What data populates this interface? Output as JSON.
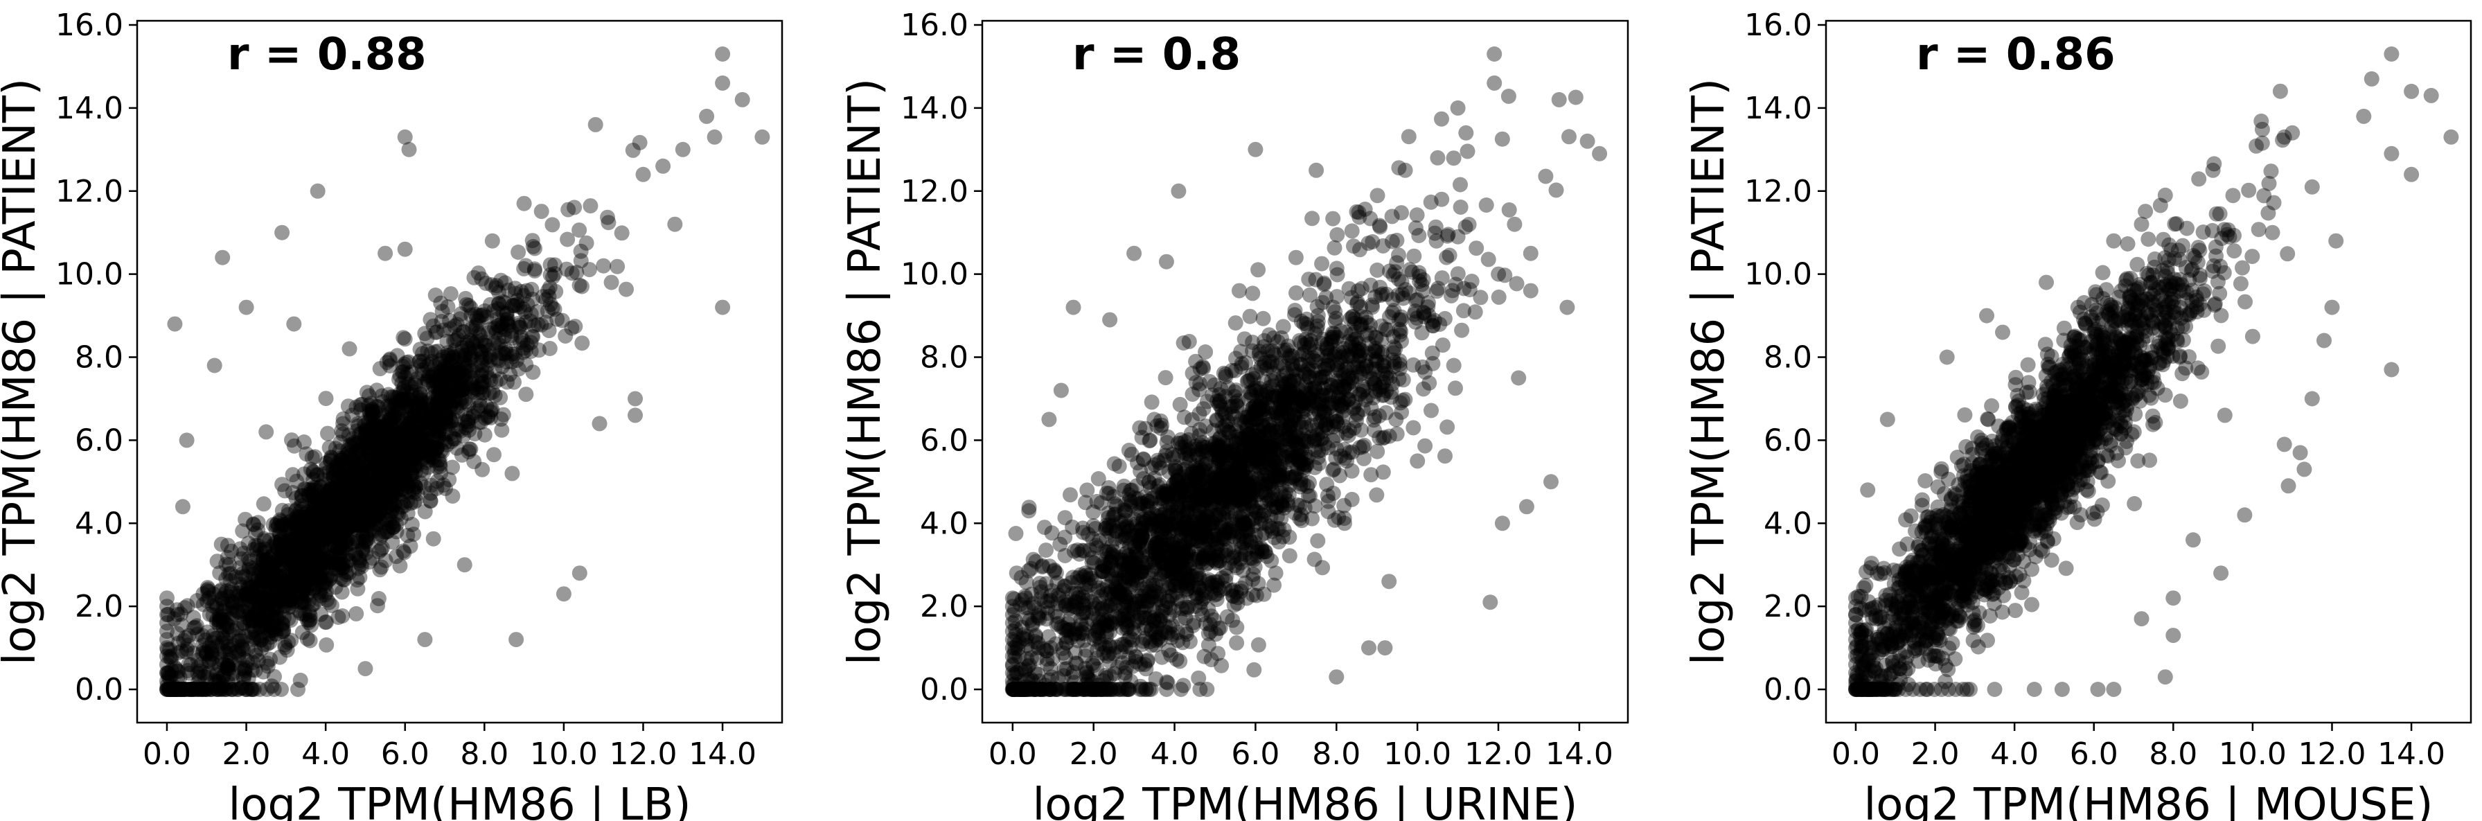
{
  "chart_data": [
    {
      "type": "scatter",
      "annotation": "r = 0.88",
      "r": 0.88,
      "xlabel": "log2 TPM(HM86 | LB)",
      "ylabel": "log2 TPM(HM86 | PATIENT)",
      "xlim": [
        -0.75,
        15.5
      ],
      "ylim": [
        -0.8,
        16.1
      ],
      "xticks": [
        0,
        2,
        4,
        6,
        8,
        10,
        12,
        14
      ],
      "xtick_labels": [
        "0.0",
        "2.0",
        "4.0",
        "6.0",
        "8.0",
        "10.0",
        "12.0",
        "14.0"
      ],
      "yticks": [
        0,
        2,
        4,
        6,
        8,
        10,
        12,
        14,
        16
      ],
      "ytick_labels": [
        "0.0",
        "2.0",
        "4.0",
        "6.0",
        "8.0",
        "10.0",
        "12.0",
        "14.0",
        "16.0"
      ],
      "marker_color": "#000000",
      "marker_alpha": 0.4,
      "grid": false,
      "points": [
        [
          14.0,
          15.3
        ],
        [
          14.0,
          14.6
        ],
        [
          14.5,
          14.2
        ],
        [
          15.0,
          13.3
        ],
        [
          13.6,
          13.8
        ],
        [
          13.8,
          13.3
        ],
        [
          13.0,
          13.0
        ],
        [
          12.5,
          12.6
        ],
        [
          12.0,
          12.4
        ],
        [
          14.0,
          9.2
        ],
        [
          6.0,
          13.3
        ],
        [
          6.1,
          13.0
        ],
        [
          3.8,
          12.0
        ],
        [
          2.9,
          11.0
        ],
        [
          1.4,
          10.4
        ],
        [
          5.5,
          10.5
        ],
        [
          6.0,
          10.6
        ],
        [
          10.8,
          13.6
        ],
        [
          9.0,
          11.7
        ],
        [
          11.8,
          7.0
        ],
        [
          11.8,
          6.6
        ],
        [
          10.9,
          6.4
        ],
        [
          11.2,
          9.8
        ],
        [
          10.4,
          2.8
        ],
        [
          10.0,
          2.3
        ],
        [
          8.8,
          1.2
        ],
        [
          6.5,
          1.2
        ],
        [
          5.0,
          0.5
        ],
        [
          0.2,
          8.8
        ],
        [
          0.5,
          6.0
        ],
        [
          1.2,
          7.8
        ],
        [
          0.4,
          4.4
        ],
        [
          2.0,
          9.2
        ],
        [
          3.2,
          8.8
        ],
        [
          9.6,
          9.6
        ],
        [
          9.2,
          8.5
        ],
        [
          8.7,
          5.2
        ],
        [
          7.5,
          3.0
        ],
        [
          3.3,
          0.0
        ],
        [
          1.5,
          0.0
        ],
        [
          2.0,
          0.0
        ],
        [
          10.2,
          8.7
        ],
        [
          11.0,
          10.2
        ],
        [
          12.8,
          11.2
        ],
        [
          8.2,
          10.8
        ],
        [
          6.9,
          9.3
        ],
        [
          4.6,
          8.2
        ],
        [
          2.5,
          6.2
        ],
        [
          1.9,
          1.0
        ],
        [
          3.6,
          3.0
        ]
      ],
      "cloud": {
        "intercept": -0.1,
        "slope": 1.0,
        "spread": 0.95,
        "x_mean": 4.7,
        "x_sd": 2.3,
        "count": 2600
      }
    },
    {
      "type": "scatter",
      "annotation": "r = 0.8",
      "r": 0.8,
      "xlabel": "log2 TPM(HM86 | URINE)",
      "ylabel": "log2 TPM(HM86 | PATIENT)",
      "xlim": [
        -0.75,
        15.2
      ],
      "ylim": [
        -0.8,
        16.1
      ],
      "xticks": [
        0,
        2,
        4,
        6,
        8,
        10,
        12,
        14
      ],
      "xtick_labels": [
        "0.0",
        "2.0",
        "4.0",
        "6.0",
        "8.0",
        "10.0",
        "12.0",
        "14.0"
      ],
      "yticks": [
        0,
        2,
        4,
        6,
        8,
        10,
        12,
        14,
        16
      ],
      "ytick_labels": [
        "0.0",
        "2.0",
        "4.0",
        "6.0",
        "8.0",
        "10.0",
        "12.0",
        "14.0",
        "16.0"
      ],
      "marker_color": "#000000",
      "marker_alpha": 0.4,
      "grid": false,
      "points": [
        [
          11.9,
          15.3
        ],
        [
          11.9,
          14.6
        ],
        [
          11.0,
          14.0
        ],
        [
          13.5,
          14.2
        ],
        [
          14.2,
          13.2
        ],
        [
          14.5,
          12.9
        ],
        [
          11.2,
          13.4
        ],
        [
          10.5,
          12.8
        ],
        [
          6.0,
          13.0
        ],
        [
          4.1,
          12.0
        ],
        [
          9.7,
          12.5
        ],
        [
          10.6,
          11.8
        ],
        [
          3.8,
          10.3
        ],
        [
          3.0,
          10.5
        ],
        [
          1.5,
          9.2
        ],
        [
          12.4,
          11.2
        ],
        [
          12.8,
          10.5
        ],
        [
          13.7,
          9.2
        ],
        [
          12.5,
          7.5
        ],
        [
          13.3,
          5.0
        ],
        [
          12.7,
          4.4
        ],
        [
          12.1,
          4.0
        ],
        [
          11.8,
          2.1
        ],
        [
          9.3,
          2.6
        ],
        [
          8.8,
          1.0
        ],
        [
          8.0,
          0.3
        ],
        [
          0.9,
          6.5
        ],
        [
          1.2,
          7.2
        ],
        [
          0.4,
          4.3
        ],
        [
          0.1,
          2.8
        ],
        [
          2.4,
          8.9
        ],
        [
          10.9,
          7.8
        ],
        [
          9.6,
          8.9
        ],
        [
          11.0,
          10.9
        ],
        [
          9.9,
          6.3
        ],
        [
          2.5,
          0.0
        ],
        [
          3.2,
          0.0
        ],
        [
          4.8,
          0.0
        ],
        [
          7.5,
          12.5
        ],
        [
          5.6,
          9.6
        ],
        [
          8.2,
          4.0
        ],
        [
          10.0,
          5.5
        ],
        [
          1.8,
          4.5
        ],
        [
          2.8,
          3.7
        ],
        [
          7.0,
          10.4
        ],
        [
          8.5,
          11.5
        ],
        [
          12.8,
          9.6
        ],
        [
          9.2,
          1.0
        ],
        [
          6.5,
          2.8
        ],
        [
          3.5,
          6.5
        ]
      ],
      "cloud": {
        "intercept": 0.1,
        "slope": 0.9,
        "spread": 1.45,
        "x_mean": 5.0,
        "x_sd": 2.6,
        "count": 2600
      }
    },
    {
      "type": "scatter",
      "annotation": "r = 0.86",
      "r": 0.86,
      "xlabel": "log2 TPM(HM86 | MOUSE)",
      "ylabel": "log2 TPM(HM86 | PATIENT)",
      "xlim": [
        -0.75,
        15.5
      ],
      "ylim": [
        -0.8,
        16.1
      ],
      "xticks": [
        0,
        2,
        4,
        6,
        8,
        10,
        12,
        14
      ],
      "xtick_labels": [
        "0.0",
        "2.0",
        "4.0",
        "6.0",
        "8.0",
        "10.0",
        "12.0",
        "14.0"
      ],
      "yticks": [
        0,
        2,
        4,
        6,
        8,
        10,
        12,
        14,
        16
      ],
      "ytick_labels": [
        "0.0",
        "2.0",
        "4.0",
        "6.0",
        "8.0",
        "10.0",
        "12.0",
        "14.0",
        "16.0"
      ],
      "marker_color": "#000000",
      "marker_alpha": 0.4,
      "grid": false,
      "points": [
        [
          13.5,
          15.3
        ],
        [
          14.0,
          14.4
        ],
        [
          14.5,
          14.3
        ],
        [
          15.0,
          13.3
        ],
        [
          13.0,
          14.7
        ],
        [
          12.8,
          13.8
        ],
        [
          11.0,
          13.4
        ],
        [
          10.8,
          13.3
        ],
        [
          9.0,
          12.5
        ],
        [
          7.8,
          11.9
        ],
        [
          7.2,
          11.2
        ],
        [
          6.5,
          10.8
        ],
        [
          14.0,
          12.4
        ],
        [
          13.5,
          12.9
        ],
        [
          11.5,
          12.1
        ],
        [
          12.0,
          9.2
        ],
        [
          13.5,
          7.7
        ],
        [
          11.8,
          8.4
        ],
        [
          11.5,
          7.0
        ],
        [
          10.8,
          5.9
        ],
        [
          11.2,
          5.7
        ],
        [
          11.3,
          5.3
        ],
        [
          10.9,
          4.9
        ],
        [
          9.8,
          4.2
        ],
        [
          8.5,
          3.6
        ],
        [
          9.2,
          2.8
        ],
        [
          8.0,
          2.2
        ],
        [
          7.2,
          1.7
        ],
        [
          8.0,
          1.3
        ],
        [
          7.8,
          0.3
        ],
        [
          6.5,
          0.0
        ],
        [
          2.8,
          0.0
        ],
        [
          3.5,
          0.0
        ],
        [
          4.5,
          0.0
        ],
        [
          5.2,
          0.0
        ],
        [
          6.1,
          0.0
        ],
        [
          0.3,
          4.8
        ],
        [
          0.0,
          1.8
        ],
        [
          0.6,
          1.7
        ],
        [
          1.3,
          3.5
        ],
        [
          0.8,
          6.5
        ],
        [
          2.3,
          8.0
        ],
        [
          3.7,
          8.6
        ],
        [
          3.3,
          9.0
        ],
        [
          4.8,
          9.8
        ],
        [
          5.6,
          9.2
        ],
        [
          10.5,
          11.0
        ],
        [
          10.0,
          8.5
        ],
        [
          9.3,
          6.6
        ],
        [
          12.1,
          10.8
        ]
      ],
      "cloud": {
        "intercept": 0.4,
        "slope": 1.1,
        "spread": 1.0,
        "x_mean": 4.3,
        "x_sd": 2.2,
        "count": 2600
      }
    }
  ]
}
